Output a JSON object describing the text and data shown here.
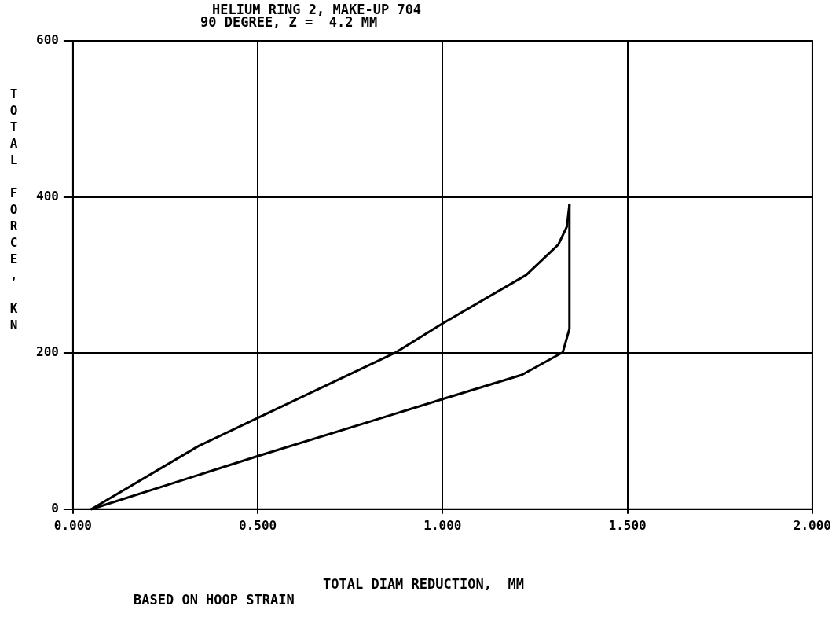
{
  "chart_data": {
    "type": "line",
    "title": "HELIUM RING 2, MAKE-UP 704",
    "subtitle": "90 DEGREE, Z =  4.2 MM",
    "xlabel": "TOTAL DIAM REDUCTION,  MM",
    "ylabel": "TOTAL FORCE, KN",
    "annotations": [
      "BASED ON HOOP STRAIN"
    ],
    "series": [
      {
        "color": "#000000",
        "x": [
          0.05,
          0.34,
          0.5,
          0.87,
          1.0,
          1.226,
          1.313,
          1.336,
          1.343
        ],
        "values": [
          0,
          81,
          117,
          200,
          238,
          300,
          339,
          362,
          390
        ]
      },
      {
        "color": "#000000",
        "x": [
          0.05,
          0.5,
          1.0,
          1.214,
          1.325,
          1.343,
          1.343
        ],
        "values": [
          0,
          68,
          141,
          172,
          201,
          231,
          390
        ]
      }
    ],
    "xlim": [
      0,
      2
    ],
    "xticks": [
      {
        "value": 0,
        "label": "0.000"
      },
      {
        "value": 0.5,
        "label": "0.500"
      },
      {
        "value": 1,
        "label": "1.000"
      },
      {
        "value": 1.5,
        "label": "1.500"
      },
      {
        "value": 2,
        "label": "2.000"
      }
    ],
    "ylim": [
      0,
      600
    ],
    "yticks": [
      0,
      200,
      400,
      600
    ],
    "grid": true,
    "legend": false,
    "marker": "none",
    "line_style": "solid"
  }
}
